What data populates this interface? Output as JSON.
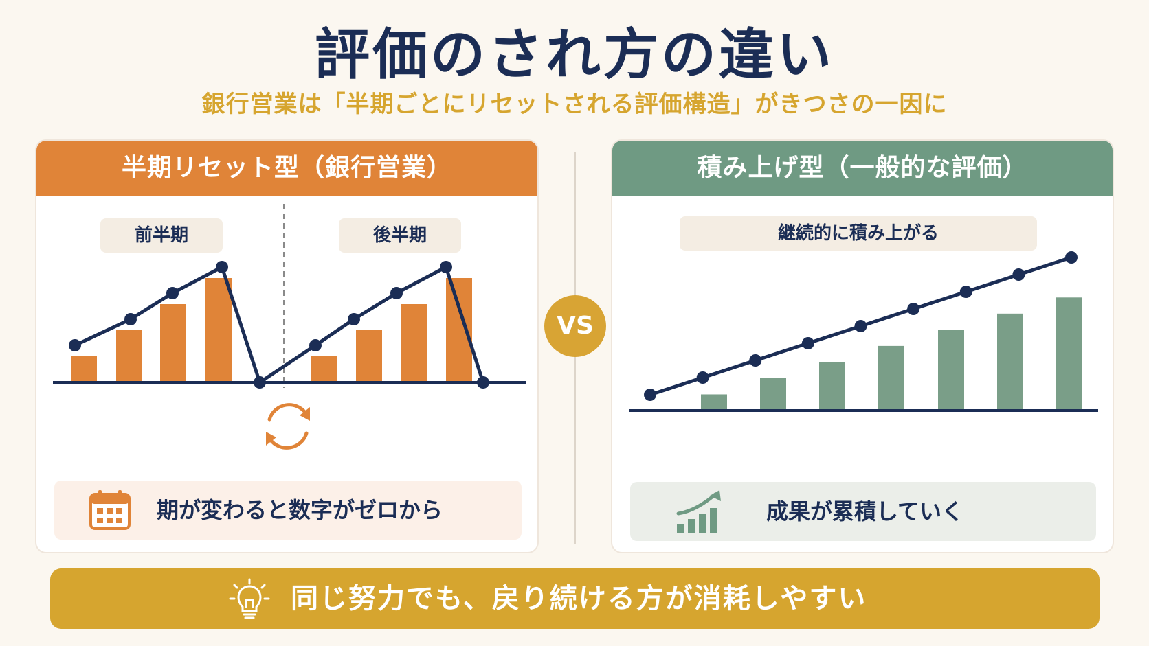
{
  "header": {
    "title": "評価のされ方の違い",
    "subtitle": "銀行営業は「半期ごとにリセットされる評価構造」がきつさの一因に"
  },
  "left_panel": {
    "title": "半期リセット型（銀行営業）",
    "chip_first": "前半期",
    "chip_second": "後半期",
    "note": "期が変わると数字がゼロから",
    "icon": "calendar-icon",
    "reset_icon": "refresh-icon"
  },
  "vs_label": "VS",
  "right_panel": {
    "title": "積み上げ型（一般的な評価）",
    "chip": "継続的に積み上がる",
    "note": "成果が累積していく",
    "icon": "growth-chart-icon"
  },
  "banner": {
    "text": "同じ努力でも、戻り続ける方が消耗しやすい",
    "icon": "lightbulb-icon"
  },
  "colors": {
    "navy": "#1b2d55",
    "orange": "#e08438",
    "green": "#6f9a83",
    "gold": "#d6a52f"
  },
  "chart_data": [
    {
      "type": "bar",
      "series": [
        {
          "values": [
            1,
            2,
            3,
            4,
            1,
            2,
            3,
            4
          ]
        }
      ],
      "line": [
        1,
        2,
        3,
        4,
        0,
        1,
        2,
        3,
        4,
        0
      ],
      "ylim": [
        0,
        4.5
      ]
    },
    {
      "type": "bar",
      "series": [
        {
          "values": [
            1,
            2,
            3,
            4,
            5,
            6,
            7
          ]
        }
      ],
      "line": [
        0,
        1,
        2,
        3,
        4,
        5,
        6,
        7,
        8
      ],
      "ylim": [
        0,
        8.5
      ]
    }
  ]
}
